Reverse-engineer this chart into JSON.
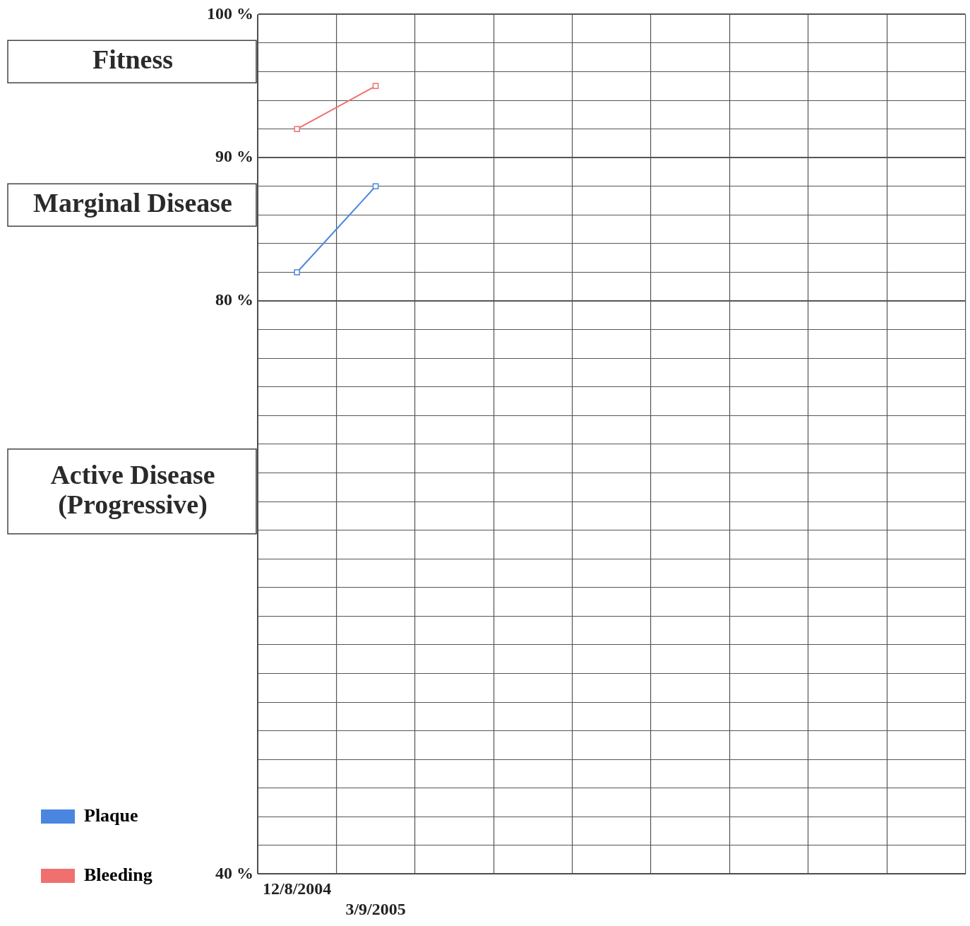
{
  "chart_data": {
    "type": "line",
    "categories": [
      "12/8/2004",
      "3/9/2005",
      null,
      null,
      null,
      null,
      null,
      null,
      null
    ],
    "series": [
      {
        "name": "Plaque",
        "color": "#4a86e0",
        "values": [
          82,
          88,
          null,
          null,
          null,
          null,
          null,
          null,
          null
        ]
      },
      {
        "name": "Bleeding",
        "color": "#f07070",
        "values": [
          92,
          95,
          null,
          null,
          null,
          null,
          null,
          null,
          null
        ]
      }
    ],
    "ylim": [
      40,
      100
    ],
    "yticks": [
      {
        "value": 100,
        "label": "100 %"
      },
      {
        "value": 98,
        "label": null
      },
      {
        "value": 96,
        "label": null
      },
      {
        "value": 94,
        "label": null
      },
      {
        "value": 92,
        "label": null
      },
      {
        "value": 90,
        "label": "90 %"
      },
      {
        "value": 88,
        "label": null
      },
      {
        "value": 86,
        "label": null
      },
      {
        "value": 84,
        "label": null
      },
      {
        "value": 82,
        "label": null
      },
      {
        "value": 80,
        "label": "80 %"
      },
      {
        "value": 78,
        "label": null
      },
      {
        "value": 76,
        "label": null
      },
      {
        "value": 74,
        "label": null
      },
      {
        "value": 72,
        "label": null
      },
      {
        "value": 70,
        "label": null
      },
      {
        "value": 68,
        "label": null
      },
      {
        "value": 66,
        "label": null
      },
      {
        "value": 64,
        "label": null
      },
      {
        "value": 62,
        "label": null
      },
      {
        "value": 60,
        "label": null
      },
      {
        "value": 58,
        "label": null
      },
      {
        "value": 56,
        "label": null
      },
      {
        "value": 54,
        "label": null
      },
      {
        "value": 52,
        "label": null
      },
      {
        "value": 50,
        "label": null
      },
      {
        "value": 48,
        "label": null
      },
      {
        "value": 46,
        "label": null
      },
      {
        "value": 44,
        "label": null
      },
      {
        "value": 42,
        "label": null
      },
      {
        "value": 40,
        "label": "40 %"
      }
    ],
    "annotations": [
      "Fitness",
      "Marginal Disease",
      "Active Disease (Progressive)"
    ],
    "grid": true,
    "legend": "bottom left",
    "marker": "square",
    "line_style": "solid"
  }
}
